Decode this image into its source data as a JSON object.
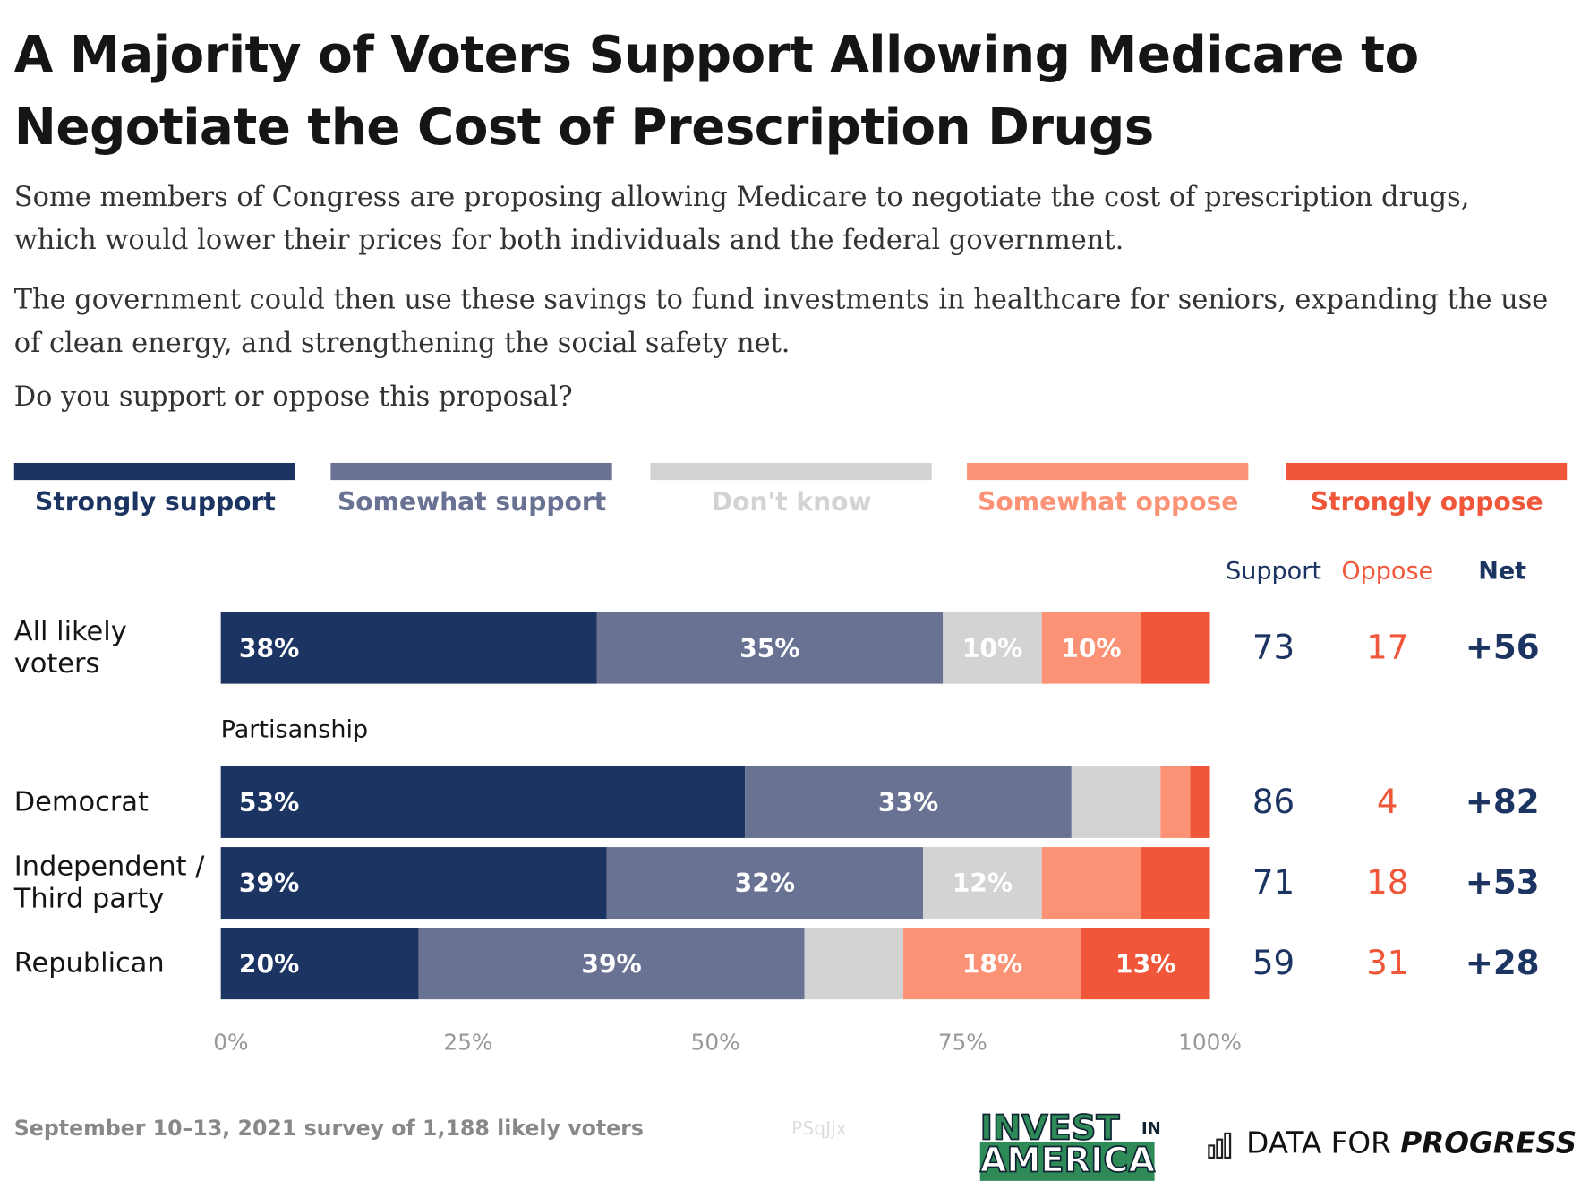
{
  "chart_data": {
    "type": "stacked-bar",
    "title": "A Majority of Voters Support Allowing Medicare to Negotiate the Cost of Prescription Drugs",
    "subtitle": [
      "Some members of Congress are proposing allowing Medicare to negotiate the cost of prescription drugs, which would lower their prices for both individuals and the federal government.",
      "The government could then use these savings to fund investments in healthcare for seniors, expanding the use of clean energy, and strengthening the social safety net.",
      "Do you support or oppose this proposal?"
    ],
    "categories": [
      "All likely voters",
      "Democrat",
      "Independent / Third party",
      "Republican"
    ],
    "group_label": "Partisanship",
    "series": [
      {
        "name": "Strongly support",
        "color": "#1c3461",
        "values": [
          38,
          53,
          39,
          20
        ],
        "value_labels": [
          "38%",
          "53%",
          "39%",
          "20%"
        ]
      },
      {
        "name": "Somewhat support",
        "color": "#6a7294",
        "values": [
          35,
          33,
          32,
          39
        ],
        "value_labels": [
          "35%",
          "33%",
          "32%",
          "39%"
        ]
      },
      {
        "name": "Don't know",
        "color": "#d3d3d3",
        "values": [
          10,
          9,
          12,
          10
        ],
        "value_labels": [
          "10%",
          null,
          "12%",
          null
        ]
      },
      {
        "name": "Somewhat oppose",
        "color": "#fb9275",
        "values": [
          10,
          3,
          10,
          18
        ],
        "value_labels": [
          "10%",
          null,
          null,
          "18%"
        ]
      },
      {
        "name": "Strongly oppose",
        "color": "#f0573a",
        "values": [
          7,
          2,
          7,
          13
        ],
        "value_labels": [
          null,
          null,
          null,
          "13%"
        ]
      }
    ],
    "xlim": [
      0,
      100
    ],
    "xticks": [
      {
        "value": 0,
        "label": "0%"
      },
      {
        "value": 25,
        "label": "25%"
      },
      {
        "value": 50,
        "label": "50%"
      },
      {
        "value": 75,
        "label": "75%"
      },
      {
        "value": 100,
        "label": "100%"
      }
    ],
    "summary": {
      "headers": [
        "Support",
        "Oppose",
        "Net"
      ],
      "support": [
        73,
        86,
        71,
        59
      ],
      "oppose": [
        17,
        4,
        18,
        31
      ],
      "net": [
        "+56",
        "+82",
        "+53",
        "+28"
      ]
    },
    "note": "September 10–13, 2021 survey of 1,188 likely voters",
    "watermark": "PSqJjx",
    "logos": {
      "invest": "INVEST",
      "in": "IN",
      "america": "AMERICA",
      "dfp": "DATA FOR",
      "dfp_bold": "PROGRESS"
    }
  }
}
